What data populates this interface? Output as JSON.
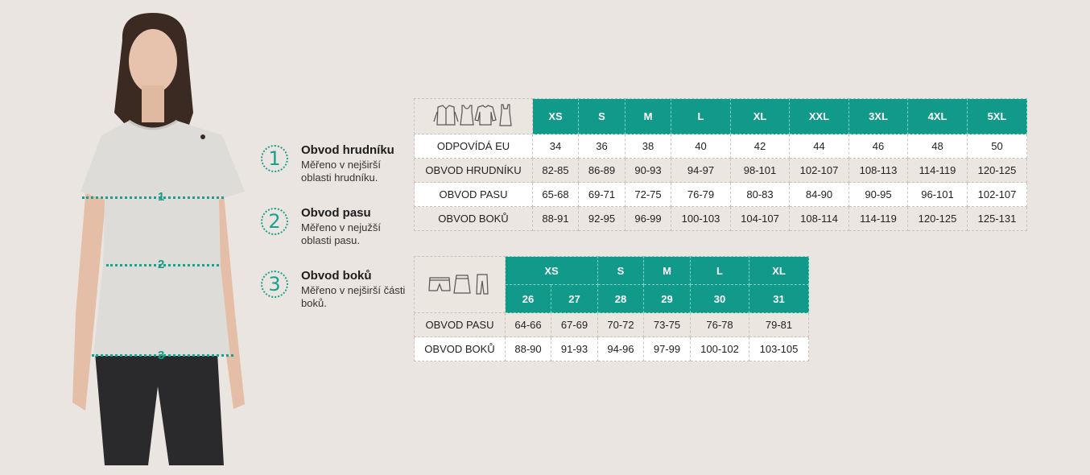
{
  "colors": {
    "accent": "#11998a",
    "background": "#ebe5e1",
    "row_white": "#ffffff",
    "row_grey": "#ece6e1"
  },
  "figure": {
    "markers": [
      "1",
      "2",
      "3"
    ]
  },
  "legend": [
    {
      "number": "1",
      "title": "Obvod hrudníku",
      "desc": "Měřeno v nejširší oblasti hrudníku."
    },
    {
      "number": "2",
      "title": "Obvod pasu",
      "desc": "Měřeno v nejužší oblasti pasu."
    },
    {
      "number": "3",
      "title": "Obvod boků",
      "desc": "Měřeno v nejširší části boků."
    }
  ],
  "top_table": {
    "icons": [
      "jacket-icon",
      "tank-top-icon",
      "sweater-icon",
      "dress-icon"
    ],
    "sizes": [
      "XS",
      "S",
      "M",
      "L",
      "XL",
      "XXL",
      "3XL",
      "4XL",
      "5XL"
    ],
    "rows": [
      {
        "label": "ODPOVÍDÁ EU",
        "values": [
          "34",
          "36",
          "38",
          "40",
          "42",
          "44",
          "46",
          "48",
          "50"
        ]
      },
      {
        "label": "OBVOD HRUDNÍKU",
        "values": [
          "82-85",
          "86-89",
          "90-93",
          "94-97",
          "98-101",
          "102-107",
          "108-113",
          "114-119",
          "120-125"
        ]
      },
      {
        "label": "OBVOD PASU",
        "values": [
          "65-68",
          "69-71",
          "72-75",
          "76-79",
          "80-83",
          "84-90",
          "90-95",
          "96-101",
          "102-107"
        ]
      },
      {
        "label": "OBVOD BOKŮ",
        "values": [
          "88-91",
          "92-95",
          "96-99",
          "100-103",
          "104-107",
          "108-114",
          "114-119",
          "120-125",
          "125-131"
        ]
      }
    ]
  },
  "bottom_table": {
    "icons": [
      "shorts-icon",
      "skirt-icon",
      "trousers-icon"
    ],
    "sizes": [
      "XS",
      "S",
      "M",
      "L",
      "XL"
    ],
    "numeric_sizes": [
      "26",
      "27",
      "28",
      "29",
      "30",
      "31"
    ],
    "rows": [
      {
        "label": "OBVOD PASU",
        "values": [
          "64-66",
          "67-69",
          "70-72",
          "73-75",
          "76-78",
          "79-81"
        ]
      },
      {
        "label": "OBVOD BOKŮ",
        "values": [
          "88-90",
          "91-93",
          "94-96",
          "97-99",
          "100-102",
          "103-105"
        ]
      }
    ]
  }
}
